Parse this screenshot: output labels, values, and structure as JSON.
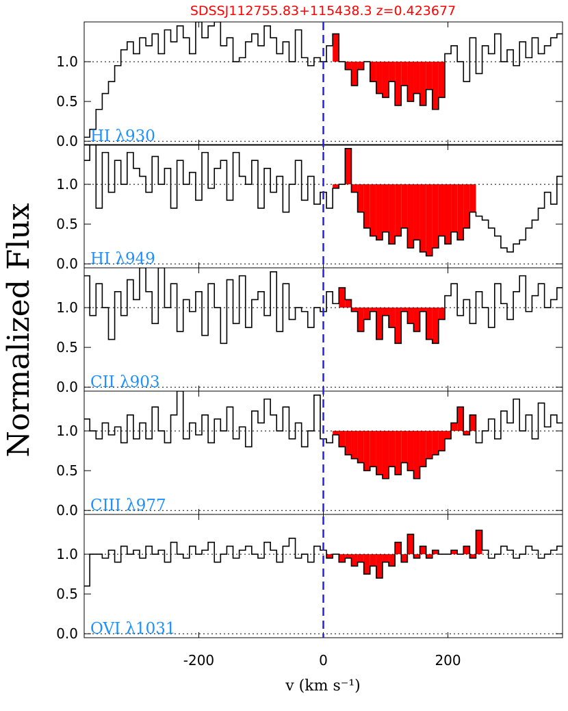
{
  "figure": {
    "title": "SDSSJ112755.83+115438.3  z=0.423677",
    "xlabel": "v (km s⁻¹)",
    "ylabel": "Normalized Flux",
    "xlim": [
      -384,
      384
    ],
    "xticks": [
      -200,
      0,
      200
    ],
    "ylim": [
      -0.05,
      1.5
    ],
    "yticks": [
      {
        "value": 0,
        "label": "0.0"
      },
      0.5,
      {
        "value": 1,
        "label": "1.0"
      }
    ],
    "reference_lines": [
      0,
      1
    ],
    "zero_line": 0,
    "line_color": "#000000",
    "zero_line_color": "#2222dd",
    "x": [
      -380,
      -370,
      -360,
      -350,
      -340,
      -330,
      -320,
      -310,
      -300,
      -290,
      -280,
      -270,
      -260,
      -250,
      -240,
      -230,
      -220,
      -210,
      -200,
      -190,
      -180,
      -170,
      -160,
      -150,
      -140,
      -130,
      -120,
      -110,
      -100,
      -90,
      -80,
      -70,
      -60,
      -50,
      -40,
      -30,
      -20,
      -10,
      0,
      10,
      20,
      30,
      40,
      50,
      60,
      70,
      80,
      90,
      100,
      110,
      120,
      130,
      140,
      150,
      160,
      170,
      180,
      190,
      200,
      210,
      220,
      230,
      240,
      250,
      260,
      270,
      280,
      290,
      300,
      310,
      320,
      330,
      340,
      350,
      360,
      370,
      380
    ]
  },
  "chart_data": [
    {
      "type": "step",
      "label": "HI λ930",
      "fill_range": [
        12,
        195
      ],
      "fill_color": "#ff0000",
      "label_color": "#1e90ff",
      "values": [
        0.05,
        0.15,
        0.4,
        0.6,
        0.75,
        0.95,
        1.15,
        1.25,
        1.1,
        1.3,
        1.2,
        1.35,
        1.1,
        1.4,
        1.25,
        1.45,
        1.3,
        1.1,
        1.5,
        1.3,
        1.45,
        1.5,
        1.2,
        1.3,
        1.0,
        1.05,
        1.25,
        1.35,
        1.2,
        1.45,
        1.3,
        1.1,
        1.25,
        1.0,
        1.4,
        1.05,
        0.95,
        1.05,
        1.0,
        1.2,
        1.35,
        1.0,
        0.9,
        0.7,
        0.9,
        1.0,
        0.75,
        0.6,
        0.55,
        0.75,
        0.45,
        0.7,
        0.5,
        0.6,
        0.45,
        0.65,
        0.4,
        0.55,
        1.1,
        1.2,
        1.0,
        0.75,
        1.3,
        0.85,
        1.2,
        1.1,
        1.35,
        1.0,
        1.15,
        0.95,
        1.25,
        1.05,
        1.3,
        1.1,
        1.2,
        1.3,
        1.35
      ]
    },
    {
      "type": "step",
      "label": "HI λ949",
      "fill_range": [
        12,
        245
      ],
      "fill_color": "#ff0000",
      "label_color": "#1e90ff",
      "values": [
        1.3,
        1.5,
        0.7,
        1.4,
        0.9,
        1.3,
        1.0,
        1.4,
        1.2,
        1.1,
        0.9,
        1.35,
        1.0,
        1.2,
        0.7,
        1.3,
        1.0,
        1.15,
        0.8,
        1.4,
        0.95,
        1.2,
        1.3,
        0.8,
        1.4,
        1.1,
        1.0,
        1.3,
        0.7,
        1.2,
        0.9,
        1.1,
        0.65,
        1.0,
        1.3,
        0.8,
        1.1,
        0.75,
        0.9,
        0.7,
        0.95,
        1.0,
        1.45,
        0.9,
        0.65,
        0.45,
        0.35,
        0.3,
        0.4,
        0.25,
        0.35,
        0.45,
        0.2,
        0.3,
        0.15,
        0.1,
        0.2,
        0.35,
        0.25,
        0.4,
        0.3,
        0.45,
        0.65,
        0.6,
        0.55,
        0.45,
        0.35,
        0.2,
        0.15,
        0.25,
        0.3,
        0.45,
        0.55,
        0.7,
        0.9,
        0.75,
        1.1
      ]
    },
    {
      "type": "step",
      "label": "CII λ903",
      "fill_range": [
        30,
        195
      ],
      "fill_color": "#ff0000",
      "label_color": "#1e90ff",
      "values": [
        1.4,
        0.9,
        1.3,
        1.0,
        0.6,
        1.2,
        0.9,
        1.35,
        1.1,
        1.5,
        1.2,
        0.8,
        1.5,
        1.0,
        1.3,
        0.7,
        1.1,
        0.95,
        1.2,
        0.65,
        1.3,
        1.0,
        0.55,
        1.35,
        0.8,
        1.4,
        0.75,
        1.1,
        1.2,
        0.9,
        1.45,
        0.7,
        1.3,
        0.85,
        1.0,
        0.95,
        0.75,
        1.0,
        0.95,
        1.2,
        1.05,
        1.25,
        1.1,
        0.95,
        0.7,
        0.85,
        0.95,
        0.6,
        0.9,
        0.75,
        0.55,
        0.95,
        0.8,
        0.7,
        0.95,
        0.6,
        0.55,
        0.85,
        1.15,
        1.3,
        0.9,
        1.1,
        0.8,
        1.2,
        1.0,
        0.75,
        1.3,
        1.05,
        0.85,
        1.2,
        1.4,
        0.95,
        1.15,
        1.3,
        1.0,
        1.1,
        1.25
      ]
    },
    {
      "type": "step",
      "label": "CIII λ977",
      "fill_range": [
        18,
        240
      ],
      "fill_color": "#ff0000",
      "label_color": "#1e90ff",
      "values": [
        1.15,
        1.0,
        0.9,
        1.1,
        0.95,
        1.05,
        0.85,
        1.2,
        0.9,
        1.1,
        0.9,
        1.3,
        1.0,
        0.85,
        1.2,
        1.5,
        0.9,
        1.1,
        0.95,
        1.2,
        0.85,
        1.15,
        1.0,
        1.3,
        0.9,
        1.05,
        0.8,
        1.25,
        1.1,
        1.4,
        1.2,
        1.0,
        1.3,
        0.9,
        1.1,
        0.8,
        1.0,
        1.45,
        0.9,
        0.85,
        0.95,
        0.8,
        0.7,
        0.65,
        0.6,
        0.5,
        0.55,
        0.45,
        0.4,
        0.55,
        0.45,
        0.6,
        0.5,
        0.4,
        0.55,
        0.65,
        0.7,
        0.75,
        0.9,
        1.1,
        1.3,
        0.95,
        1.2,
        0.85,
        1.0,
        1.15,
        0.9,
        1.25,
        1.1,
        1.4,
        1.0,
        1.2,
        0.9,
        1.35,
        1.05,
        1.2,
        1.1
      ]
    },
    {
      "type": "step",
      "label": "OVI λ1031",
      "fill_range": [
        8,
        250
      ],
      "fill_color": "#ff0000",
      "label_color": "#1e90ff",
      "values": [
        0.6,
        1.0,
        1.0,
        0.95,
        1.05,
        0.9,
        1.1,
        1.0,
        1.05,
        0.95,
        1.1,
        1.0,
        1.05,
        0.9,
        1.15,
        1.0,
        0.95,
        1.1,
        1.0,
        1.05,
        1.15,
        0.9,
        1.0,
        1.1,
        0.95,
        1.05,
        1.1,
        1.0,
        0.95,
        1.15,
        1.05,
        0.9,
        1.1,
        1.2,
        0.95,
        1.0,
        0.9,
        1.1,
        1.05,
        0.95,
        1.0,
        0.9,
        0.95,
        0.85,
        0.9,
        0.75,
        0.85,
        0.7,
        0.9,
        0.85,
        1.15,
        0.9,
        1.25,
        0.95,
        1.1,
        0.95,
        1.05,
        1.0,
        1.0,
        1.05,
        1.0,
        1.1,
        0.95,
        1.3,
        1.05,
        0.95,
        1.0,
        1.1,
        1.05,
        0.95,
        1.0,
        1.1,
        1.05,
        0.95,
        1.0,
        1.05,
        1.1
      ]
    }
  ]
}
